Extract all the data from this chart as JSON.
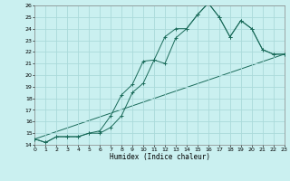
{
  "xlabel": "Humidex (Indice chaleur)",
  "bg_color": "#caf0f0",
  "grid_color": "#aadada",
  "line_color": "#1a6b5a",
  "xlim": [
    0,
    23
  ],
  "ylim": [
    14,
    26
  ],
  "xticks": [
    0,
    1,
    2,
    3,
    4,
    5,
    6,
    7,
    8,
    9,
    10,
    11,
    12,
    13,
    14,
    15,
    16,
    17,
    18,
    19,
    20,
    21,
    22,
    23
  ],
  "yticks": [
    14,
    15,
    16,
    17,
    18,
    19,
    20,
    21,
    22,
    23,
    24,
    25,
    26
  ],
  "line1_x": [
    0,
    1,
    2,
    3,
    4,
    5,
    6,
    7,
    8,
    9,
    10,
    11,
    12,
    13,
    14,
    15,
    16,
    17,
    18,
    19,
    20,
    21,
    22,
    23
  ],
  "line1_y": [
    14.5,
    14.2,
    14.7,
    14.7,
    14.7,
    15.0,
    15.0,
    15.5,
    16.5,
    18.5,
    19.3,
    21.3,
    23.3,
    24.0,
    24.0,
    25.2,
    26.2,
    25.0,
    23.3,
    24.7,
    24.0,
    22.2,
    21.8,
    21.8
  ],
  "line2_x": [
    0,
    1,
    2,
    3,
    4,
    5,
    6,
    7,
    8,
    9,
    10,
    11,
    12,
    13,
    14,
    15,
    16,
    17,
    18,
    19,
    20,
    21,
    22,
    23
  ],
  "line2_y": [
    14.5,
    14.2,
    14.7,
    14.7,
    14.7,
    15.0,
    15.2,
    16.5,
    18.3,
    19.2,
    21.2,
    21.3,
    21.0,
    23.2,
    24.0,
    25.2,
    26.2,
    25.0,
    23.3,
    24.7,
    24.0,
    22.2,
    21.8,
    21.8
  ],
  "line3_x": [
    0,
    23
  ],
  "line3_y": [
    14.5,
    21.8
  ]
}
